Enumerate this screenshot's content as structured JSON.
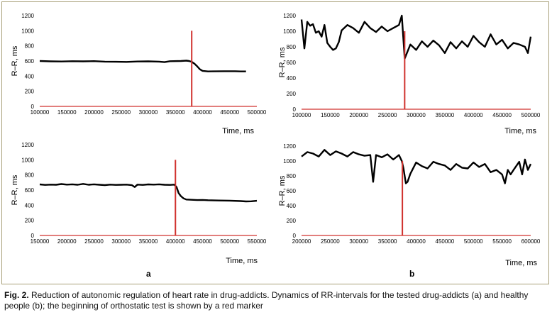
{
  "panels": [
    {
      "label": "a"
    },
    {
      "label": "b"
    }
  ],
  "caption": {
    "prefix": "Fig. 2.",
    "text": "Reduction of autonomic regulation of heart rate in drug-addicts. Dynamics of RR-intervals for the tested drug-addicts (a) and healthy people (b); the beginning of orthostatic test is shown by a red marker"
  },
  "colors": {
    "series": "#000000",
    "marker": "#d0312d",
    "frame": "#a9a07a"
  },
  "chart_data": [
    {
      "type": "line",
      "panel": "a",
      "row": "top",
      "ylabel": "R–R, ms",
      "xlabel": "Time, ms",
      "xlim": [
        100000,
        500000
      ],
      "ylim": [
        0,
        1200
      ],
      "xticks": [
        100000,
        150000,
        200000,
        250000,
        300000,
        350000,
        400000,
        450000,
        500000
      ],
      "xtick_labels": [
        "100000",
        "150000",
        "200000",
        "250000",
        "300000",
        "350000",
        "400000",
        "450000",
        "500000"
      ],
      "yticks": [
        0,
        200,
        400,
        600,
        800,
        1000,
        1200
      ],
      "marker_x": 380000,
      "series": [
        {
          "x": [
            100000,
            120000,
            140000,
            160000,
            180000,
            200000,
            220000,
            240000,
            260000,
            280000,
            300000,
            320000,
            330000,
            340000,
            360000,
            370000,
            375000,
            380000,
            385000,
            390000,
            395000,
            400000,
            410000,
            420000,
            440000,
            460000,
            470000,
            480000
          ],
          "values": [
            600,
            595,
            593,
            597,
            595,
            598,
            592,
            590,
            588,
            593,
            595,
            592,
            585,
            597,
            600,
            605,
            600,
            590,
            565,
            530,
            490,
            470,
            462,
            463,
            465,
            465,
            462,
            462
          ]
        }
      ]
    },
    {
      "type": "line",
      "panel": "b",
      "row": "top",
      "ylabel": "R–R, ms",
      "xlabel": "Time, ms",
      "xlim": [
        100000,
        500000
      ],
      "ylim": [
        0,
        1200
      ],
      "xticks": [
        100000,
        150000,
        200000,
        250000,
        300000,
        350000,
        400000,
        450000,
        500000
      ],
      "xtick_labels": [
        "100000",
        "150000",
        "200000",
        "250000",
        "300000",
        "350000",
        "400000",
        "450000",
        "500000"
      ],
      "yticks": [
        0,
        200,
        400,
        600,
        800,
        1000,
        1200
      ],
      "marker_x": 280000,
      "series": [
        {
          "x": [
            100000,
            105000,
            110000,
            115000,
            120000,
            125000,
            130000,
            135000,
            140000,
            145000,
            150000,
            155000,
            160000,
            165000,
            170000,
            180000,
            190000,
            200000,
            210000,
            220000,
            230000,
            240000,
            250000,
            260000,
            270000,
            275000,
            280000,
            285000,
            290000,
            300000,
            310000,
            320000,
            330000,
            340000,
            350000,
            360000,
            370000,
            380000,
            390000,
            400000,
            410000,
            420000,
            430000,
            440000,
            450000,
            460000,
            470000,
            480000,
            490000,
            495000,
            500000
          ],
          "values": [
            1150,
            780,
            1120,
            1070,
            1090,
            980,
            1000,
            930,
            1080,
            850,
            800,
            760,
            780,
            860,
            1010,
            1080,
            1040,
            980,
            1120,
            1040,
            990,
            1060,
            1000,
            1040,
            1080,
            1200,
            650,
            740,
            830,
            760,
            870,
            800,
            880,
            820,
            720,
            860,
            780,
            870,
            800,
            940,
            860,
            800,
            960,
            830,
            890,
            780,
            850,
            830,
            800,
            720,
            930
          ]
        }
      ]
    },
    {
      "type": "line",
      "panel": "a",
      "row": "bottom",
      "ylabel": "R–R, ms",
      "xlabel": "Time, ms",
      "xlim": [
        150000,
        550000
      ],
      "ylim": [
        0,
        1200
      ],
      "xticks": [
        150000,
        200000,
        250000,
        300000,
        350000,
        400000,
        450000,
        500000,
        550000
      ],
      "xtick_labels": [
        "150000",
        "200000",
        "250000",
        "300000",
        "350000",
        "400000",
        "450000",
        "500000",
        "550000"
      ],
      "yticks": [
        0,
        200,
        400,
        600,
        800,
        1000,
        1200
      ],
      "marker_x": 400000,
      "series": [
        {
          "x": [
            150000,
            160000,
            170000,
            180000,
            190000,
            200000,
            210000,
            220000,
            230000,
            240000,
            250000,
            260000,
            270000,
            280000,
            290000,
            300000,
            310000,
            320000,
            325000,
            330000,
            340000,
            350000,
            360000,
            370000,
            380000,
            390000,
            398000,
            402000,
            406000,
            410000,
            415000,
            420000,
            430000,
            440000,
            450000,
            460000,
            480000,
            500000,
            520000,
            530000,
            540000,
            550000
          ],
          "values": [
            675,
            668,
            672,
            670,
            680,
            672,
            676,
            670,
            682,
            670,
            676,
            670,
            666,
            672,
            668,
            670,
            672,
            665,
            640,
            672,
            668,
            675,
            672,
            676,
            670,
            668,
            672,
            640,
            560,
            520,
            490,
            475,
            472,
            468,
            470,
            466,
            462,
            460,
            455,
            450,
            452,
            458
          ]
        }
      ]
    },
    {
      "type": "line",
      "panel": "b",
      "row": "bottom",
      "ylabel": "R–R, ms",
      "xlabel": "Time, ms",
      "xlim": [
        200000,
        600000
      ],
      "ylim": [
        0,
        1200
      ],
      "xticks": [
        200000,
        250000,
        300000,
        350000,
        400000,
        450000,
        500000,
        550000,
        600000
      ],
      "xtick_labels": [
        "200000",
        "250000",
        "300000",
        "350000",
        "400000",
        "450000",
        "500000",
        "550000",
        "600000"
      ],
      "yticks": [
        0,
        200,
        400,
        600,
        800,
        1000,
        1200
      ],
      "marker_x": 376000,
      "series": [
        {
          "x": [
            200000,
            210000,
            220000,
            230000,
            240000,
            250000,
            260000,
            270000,
            280000,
            290000,
            300000,
            310000,
            320000,
            325000,
            330000,
            340000,
            350000,
            360000,
            370000,
            375000,
            378000,
            382000,
            385000,
            390000,
            400000,
            410000,
            420000,
            430000,
            440000,
            450000,
            460000,
            470000,
            480000,
            490000,
            500000,
            510000,
            520000,
            530000,
            540000,
            550000,
            555000,
            560000,
            565000,
            570000,
            580000,
            585000,
            590000,
            595000,
            600000
          ],
          "values": [
            1060,
            1120,
            1100,
            1060,
            1150,
            1080,
            1130,
            1100,
            1060,
            1120,
            1090,
            1070,
            1080,
            720,
            1080,
            1050,
            1090,
            1020,
            1080,
            1000,
            900,
            700,
            720,
            830,
            980,
            930,
            900,
            990,
            960,
            940,
            880,
            960,
            910,
            900,
            980,
            920,
            960,
            850,
            880,
            820,
            700,
            880,
            820,
            880,
            990,
            820,
            1020,
            880,
            960
          ]
        }
      ]
    }
  ]
}
